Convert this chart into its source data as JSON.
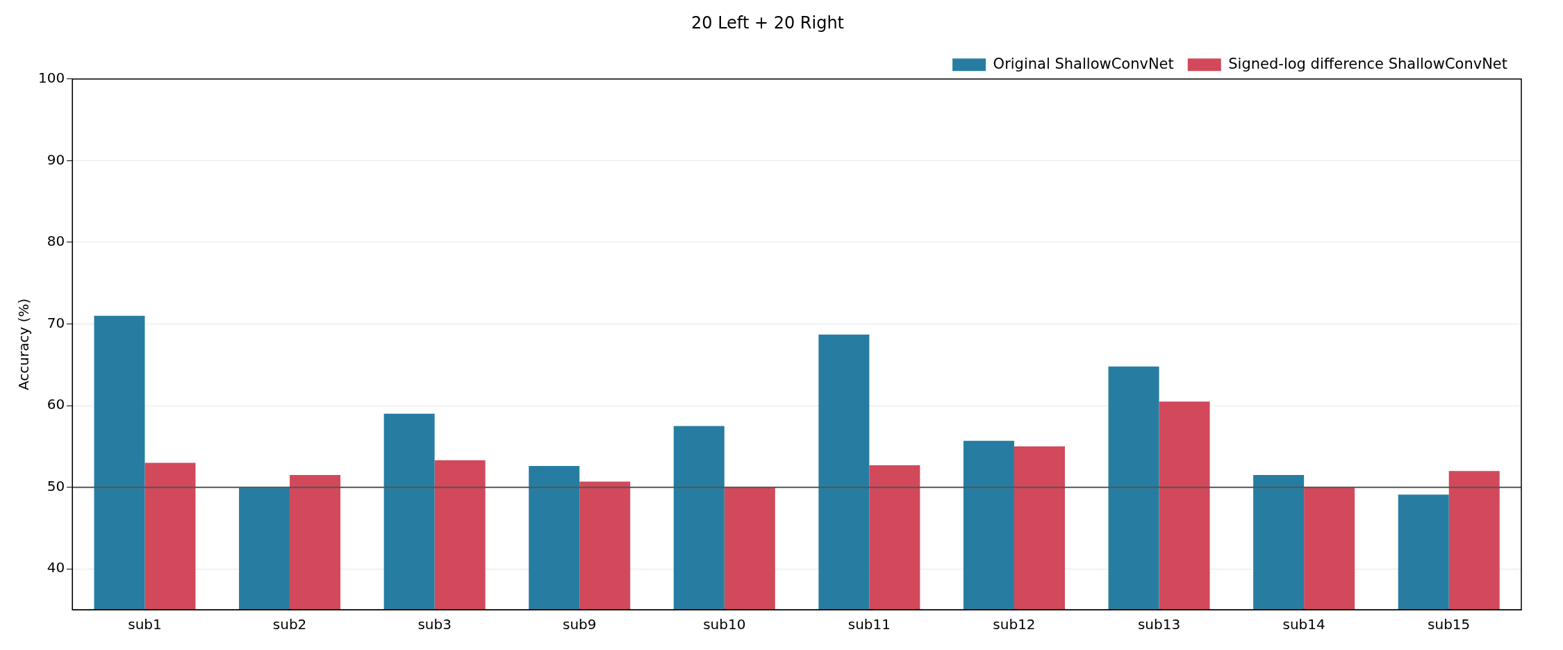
{
  "chart_data": {
    "type": "bar",
    "title": "20 Left + 20 Right",
    "ylabel": "Accuracy (%)",
    "categories": [
      "sub1",
      "sub2",
      "sub3",
      "sub9",
      "sub10",
      "sub11",
      "sub12",
      "sub13",
      "sub14",
      "sub15"
    ],
    "series": [
      {
        "name": "Original ShallowConvNet",
        "color": "#277da1",
        "values": [
          71.0,
          50.0,
          59.0,
          52.6,
          57.5,
          68.7,
          55.7,
          64.8,
          51.5,
          49.1
        ]
      },
      {
        "name": "Signed-log difference ShallowConvNet",
        "color": "#d1495b",
        "values": [
          53.0,
          51.5,
          53.3,
          50.7,
          50.0,
          52.7,
          55.0,
          60.5,
          50.0,
          52.0
        ]
      }
    ],
    "ylim": [
      35,
      100
    ],
    "yticks": [
      40,
      50,
      60,
      70,
      80,
      90,
      100
    ],
    "ref_lines": [
      {
        "axis": "y",
        "value": 50,
        "color": "#555555"
      }
    ],
    "grid": "y",
    "legend": "top right"
  }
}
